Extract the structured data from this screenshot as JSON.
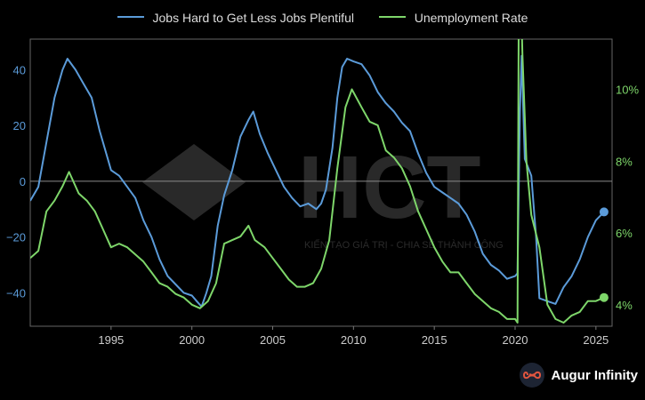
{
  "legend": {
    "series1": "Jobs Hard to Get Less Jobs Plentiful",
    "series2": "Unemployment Rate"
  },
  "brand": {
    "name": "Augur Infinity",
    "icon": "infinity-icon"
  },
  "watermark": {
    "text": "HCT",
    "tagline": "KIẾN TẠO GIÁ TRỊ - CHIA SẺ THÀNH CÔNG"
  },
  "colors": {
    "series1": "#5b9bd9",
    "series2": "#7ed66a",
    "axis": "#aaaaaa",
    "zero": "#8a8a8a"
  },
  "chart_data": {
    "type": "line",
    "x_range": [
      1990.0,
      2026.0
    ],
    "left_axis": {
      "ylim": [
        -52,
        51
      ],
      "ticks": [
        -40,
        -20,
        0,
        20,
        40
      ],
      "tick_labels": [
        "−40",
        "−20",
        "0",
        "20",
        "40"
      ]
    },
    "right_axis": {
      "ylim": [
        3.4,
        11.4
      ],
      "ticks": [
        4,
        6,
        8,
        10
      ],
      "tick_labels": [
        "4%",
        "6%",
        "8%",
        "10%"
      ]
    },
    "x_ticks": [
      1995,
      2000,
      2005,
      2010,
      2015,
      2020,
      2025
    ],
    "x_tick_labels": [
      "1995",
      "2000",
      "2005",
      "2010",
      "2015",
      "2020",
      "2025"
    ],
    "series": [
      {
        "name": "Jobs Hard to Get Less Jobs Plentiful",
        "axis": "left",
        "points": [
          [
            1990.0,
            -7
          ],
          [
            1990.5,
            -2
          ],
          [
            1991.0,
            14
          ],
          [
            1991.5,
            30
          ],
          [
            1992.0,
            40
          ],
          [
            1992.3,
            44
          ],
          [
            1992.8,
            40
          ],
          [
            1993.3,
            35
          ],
          [
            1993.8,
            30
          ],
          [
            1994.3,
            18
          ],
          [
            1994.8,
            8
          ],
          [
            1995.0,
            4
          ],
          [
            1995.5,
            2
          ],
          [
            1996.0,
            -2
          ],
          [
            1996.5,
            -6
          ],
          [
            1997.0,
            -14
          ],
          [
            1997.5,
            -20
          ],
          [
            1998.0,
            -28
          ],
          [
            1998.5,
            -34
          ],
          [
            1999.0,
            -37
          ],
          [
            1999.5,
            -40
          ],
          [
            2000.0,
            -41
          ],
          [
            2000.3,
            -43
          ],
          [
            2000.6,
            -45
          ],
          [
            2000.9,
            -40
          ],
          [
            2001.2,
            -34
          ],
          [
            2001.6,
            -16
          ],
          [
            2002.0,
            -5
          ],
          [
            2002.5,
            4
          ],
          [
            2003.0,
            16
          ],
          [
            2003.5,
            22
          ],
          [
            2003.8,
            25
          ],
          [
            2004.2,
            17
          ],
          [
            2004.7,
            10
          ],
          [
            2005.2,
            4
          ],
          [
            2005.7,
            -2
          ],
          [
            2006.2,
            -6
          ],
          [
            2006.7,
            -9
          ],
          [
            2007.2,
            -8
          ],
          [
            2007.7,
            -10
          ],
          [
            2008.0,
            -8
          ],
          [
            2008.3,
            -3
          ],
          [
            2008.7,
            12
          ],
          [
            2009.0,
            30
          ],
          [
            2009.3,
            41
          ],
          [
            2009.6,
            44
          ],
          [
            2010.0,
            43
          ],
          [
            2010.5,
            42
          ],
          [
            2011.0,
            38
          ],
          [
            2011.5,
            32
          ],
          [
            2012.0,
            28
          ],
          [
            2012.5,
            25
          ],
          [
            2013.0,
            21
          ],
          [
            2013.5,
            18
          ],
          [
            2014.0,
            10
          ],
          [
            2014.5,
            3
          ],
          [
            2015.0,
            -2
          ],
          [
            2015.5,
            -4
          ],
          [
            2016.0,
            -6
          ],
          [
            2016.5,
            -8
          ],
          [
            2017.0,
            -12
          ],
          [
            2017.5,
            -18
          ],
          [
            2018.0,
            -26
          ],
          [
            2018.5,
            -30
          ],
          [
            2019.0,
            -32
          ],
          [
            2019.5,
            -35
          ],
          [
            2020.0,
            -34
          ],
          [
            2020.15,
            -33
          ],
          [
            2020.3,
            25
          ],
          [
            2020.4,
            45
          ],
          [
            2020.6,
            8
          ],
          [
            2021.0,
            2
          ],
          [
            2021.3,
            -20
          ],
          [
            2021.5,
            -42
          ],
          [
            2022.0,
            -43
          ],
          [
            2022.5,
            -44
          ],
          [
            2023.0,
            -38
          ],
          [
            2023.5,
            -34
          ],
          [
            2024.0,
            -28
          ],
          [
            2024.5,
            -20
          ],
          [
            2025.0,
            -14
          ],
          [
            2025.5,
            -11
          ]
        ]
      },
      {
        "name": "Unemployment Rate",
        "axis": "right",
        "points": [
          [
            1990.0,
            5.3
          ],
          [
            1990.5,
            5.5
          ],
          [
            1991.0,
            6.6
          ],
          [
            1991.5,
            6.9
          ],
          [
            1992.0,
            7.3
          ],
          [
            1992.4,
            7.7
          ],
          [
            1993.0,
            7.1
          ],
          [
            1993.5,
            6.9
          ],
          [
            1994.0,
            6.6
          ],
          [
            1994.5,
            6.1
          ],
          [
            1995.0,
            5.6
          ],
          [
            1995.5,
            5.7
          ],
          [
            1996.0,
            5.6
          ],
          [
            1996.5,
            5.4
          ],
          [
            1997.0,
            5.2
          ],
          [
            1997.5,
            4.9
          ],
          [
            1998.0,
            4.6
          ],
          [
            1998.5,
            4.5
          ],
          [
            1999.0,
            4.3
          ],
          [
            1999.5,
            4.2
          ],
          [
            2000.0,
            4.0
          ],
          [
            2000.5,
            3.9
          ],
          [
            2001.0,
            4.1
          ],
          [
            2001.5,
            4.6
          ],
          [
            2002.0,
            5.7
          ],
          [
            2002.5,
            5.8
          ],
          [
            2003.0,
            5.9
          ],
          [
            2003.5,
            6.2
          ],
          [
            2003.9,
            5.8
          ],
          [
            2004.5,
            5.6
          ],
          [
            2005.0,
            5.3
          ],
          [
            2005.5,
            5.0
          ],
          [
            2006.0,
            4.7
          ],
          [
            2006.5,
            4.5
          ],
          [
            2007.0,
            4.5
          ],
          [
            2007.5,
            4.6
          ],
          [
            2008.0,
            5.0
          ],
          [
            2008.5,
            5.8
          ],
          [
            2009.0,
            7.8
          ],
          [
            2009.5,
            9.5
          ],
          [
            2009.9,
            10.0
          ],
          [
            2010.5,
            9.5
          ],
          [
            2011.0,
            9.1
          ],
          [
            2011.5,
            9.0
          ],
          [
            2012.0,
            8.3
          ],
          [
            2012.5,
            8.1
          ],
          [
            2013.0,
            7.8
          ],
          [
            2013.5,
            7.3
          ],
          [
            2014.0,
            6.6
          ],
          [
            2014.5,
            6.1
          ],
          [
            2015.0,
            5.6
          ],
          [
            2015.5,
            5.2
          ],
          [
            2016.0,
            4.9
          ],
          [
            2016.5,
            4.9
          ],
          [
            2017.0,
            4.6
          ],
          [
            2017.5,
            4.3
          ],
          [
            2018.0,
            4.1
          ],
          [
            2018.5,
            3.9
          ],
          [
            2019.0,
            3.8
          ],
          [
            2019.5,
            3.6
          ],
          [
            2020.0,
            3.6
          ],
          [
            2020.15,
            3.5
          ],
          [
            2020.25,
            14.8
          ],
          [
            2020.45,
            11.0
          ],
          [
            2020.7,
            8.0
          ],
          [
            2021.0,
            6.5
          ],
          [
            2021.5,
            5.6
          ],
          [
            2022.0,
            4.0
          ],
          [
            2022.5,
            3.6
          ],
          [
            2023.0,
            3.5
          ],
          [
            2023.5,
            3.7
          ],
          [
            2024.0,
            3.8
          ],
          [
            2024.5,
            4.1
          ],
          [
            2025.0,
            4.1
          ],
          [
            2025.5,
            4.2
          ]
        ]
      }
    ]
  }
}
